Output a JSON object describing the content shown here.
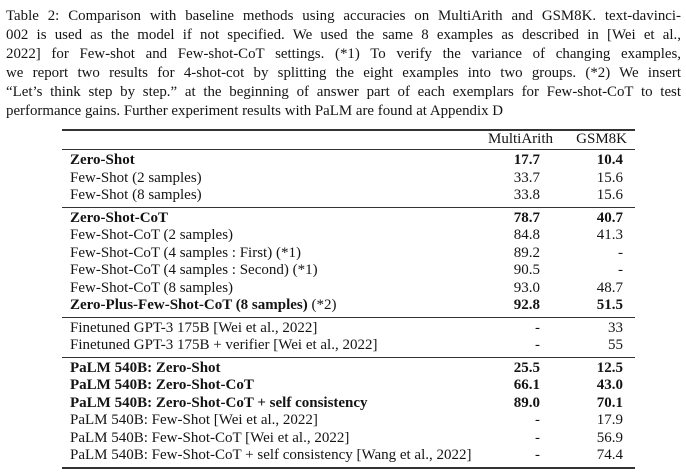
{
  "page": {
    "background_color": "#ffffff",
    "text_color": "#141414",
    "rule_color": "#333333"
  },
  "caption": {
    "lines": [
      "Table 2: Comparison with baseline methods using accuracies on MultiArith and GSM8K. text-davinci-",
      "002 is used as the model if not specified. We used the same 8 examples as described in [Wei et al.,",
      "2022] for Few-shot and Few-shot-CoT settings. (*1) To verify the variance of changing examples,",
      "we report two results for 4-shot-cot by splitting the eight examples into two groups. (*2) We insert",
      "“Let’s think step by step.” at the beginning of answer part of each exemplars for Few-shot-CoT to test",
      "performance gains. Further experiment results with PaLM are found at Appendix D"
    ]
  },
  "table": {
    "columns": [
      "MultiArith",
      "GSM8K"
    ],
    "sections": [
      {
        "rows": [
          {
            "label": "Zero-Shot",
            "multiarith": "17.7",
            "gsm8k": "10.4",
            "bold": true
          },
          {
            "label": "Few-Shot (2 samples)",
            "multiarith": "33.7",
            "gsm8k": "15.6",
            "bold": false
          },
          {
            "label": "Few-Shot (8 samples)",
            "multiarith": "33.8",
            "gsm8k": "15.6",
            "bold": false
          }
        ]
      },
      {
        "rows": [
          {
            "label": "Zero-Shot-CoT",
            "multiarith": "78.7",
            "gsm8k": "40.7",
            "bold": true
          },
          {
            "label": "Few-Shot-CoT (2 samples)",
            "multiarith": "84.8",
            "gsm8k": "41.3",
            "bold": false
          },
          {
            "label": "Few-Shot-CoT (4 samples : First) (*1)",
            "multiarith": "89.2",
            "gsm8k": "-",
            "bold": false
          },
          {
            "label": "Few-Shot-CoT (4 samples : Second) (*1)",
            "multiarith": "90.5",
            "gsm8k": "-",
            "bold": false
          },
          {
            "label": "Few-Shot-CoT (8 samples)",
            "multiarith": "93.0",
            "gsm8k": "48.7",
            "bold": false
          },
          {
            "label": "Zero-Plus-Few-Shot-CoT (8 samples)",
            "label_suffix": " (*2)",
            "multiarith": "92.8",
            "gsm8k": "51.5",
            "bold": true
          }
        ]
      },
      {
        "rows": [
          {
            "label": "Finetuned GPT-3 175B [Wei et al., 2022]",
            "multiarith": "-",
            "gsm8k": "33",
            "bold": false
          },
          {
            "label": "Finetuned GPT-3 175B + verifier [Wei et al., 2022]",
            "multiarith": "-",
            "gsm8k": "55",
            "bold": false
          }
        ]
      },
      {
        "rows": [
          {
            "label": "PaLM 540B: Zero-Shot",
            "multiarith": "25.5",
            "gsm8k": "12.5",
            "bold": true
          },
          {
            "label": "PaLM 540B: Zero-Shot-CoT",
            "multiarith": "66.1",
            "gsm8k": "43.0",
            "bold": true
          },
          {
            "label": "PaLM 540B: Zero-Shot-CoT + self consistency",
            "multiarith": "89.0",
            "gsm8k": "70.1",
            "bold": true
          },
          {
            "label": "PaLM 540B: Few-Shot [Wei et al., 2022]",
            "multiarith": "-",
            "gsm8k": "17.9",
            "bold": false
          },
          {
            "label": "PaLM 540B: Few-Shot-CoT [Wei et al., 2022]",
            "multiarith": "-",
            "gsm8k": "56.9",
            "bold": false
          },
          {
            "label": "PaLM 540B: Few-Shot-CoT + self consistency [Wang et al., 2022]",
            "multiarith": "-",
            "gsm8k": "74.4",
            "bold": false
          }
        ]
      }
    ]
  }
}
